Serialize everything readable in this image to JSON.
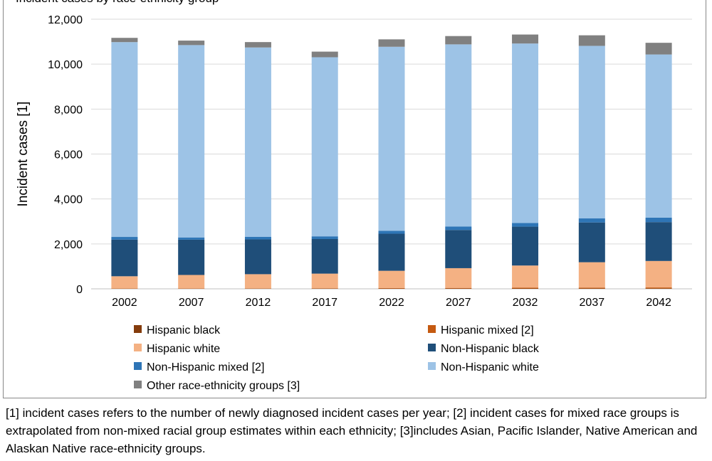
{
  "chart_data": {
    "type": "bar",
    "stacked": true,
    "title": "Incident cases by race-ethnicity group",
    "ylabel": "Incident cases [1]",
    "xlabel": "",
    "ylim": [
      0,
      12000
    ],
    "yticks": [
      0,
      2000,
      4000,
      6000,
      8000,
      10000,
      12000
    ],
    "ytick_labels": [
      "0",
      "2,000",
      "4,000",
      "6,000",
      "8,000",
      "10,000",
      "12,000"
    ],
    "grid": true,
    "legend_position": "bottom",
    "categories": [
      "2002",
      "2007",
      "2012",
      "2017",
      "2022",
      "2027",
      "2032",
      "2037",
      "2042"
    ],
    "series": [
      {
        "name": "Hispanic black",
        "color": "#843C0C",
        "values": [
          5,
          6,
          7,
          9,
          11,
          13,
          16,
          18,
          20
        ]
      },
      {
        "name": "Hispanic mixed [2]",
        "color": "#C55A11",
        "values": [
          10,
          12,
          15,
          18,
          22,
          27,
          32,
          36,
          40
        ]
      },
      {
        "name": "Hispanic white",
        "color": "#F4B183",
        "values": [
          545,
          600,
          630,
          650,
          770,
          880,
          990,
          1130,
          1180
        ]
      },
      {
        "name": "Non-Hispanic black",
        "color": "#1F4E79",
        "values": [
          1630,
          1570,
          1550,
          1540,
          1650,
          1700,
          1730,
          1770,
          1730
        ]
      },
      {
        "name": "Non-Hispanic mixed [2]",
        "color": "#2E75B6",
        "values": [
          120,
          100,
          110,
          120,
          130,
          150,
          160,
          180,
          200
        ]
      },
      {
        "name": "Non-Hispanic white",
        "color": "#9DC3E6",
        "values": [
          8670,
          8560,
          8430,
          7970,
          8190,
          8110,
          7990,
          7680,
          7260
        ]
      },
      {
        "name": "Other race-ethnicity groups [3]",
        "color": "#808080",
        "values": [
          190,
          200,
          240,
          250,
          330,
          370,
          400,
          470,
          520
        ]
      }
    ]
  },
  "footnote": "[1] incident cases refers to the number of newly diagnosed incident cases per year; [2] incident cases for mixed race groups is extrapolated from non-mixed racial group estimates within each ethnicity; [3]includes Asian, Pacific Islander, Native American and Alaskan Native race-ethnicity groups."
}
